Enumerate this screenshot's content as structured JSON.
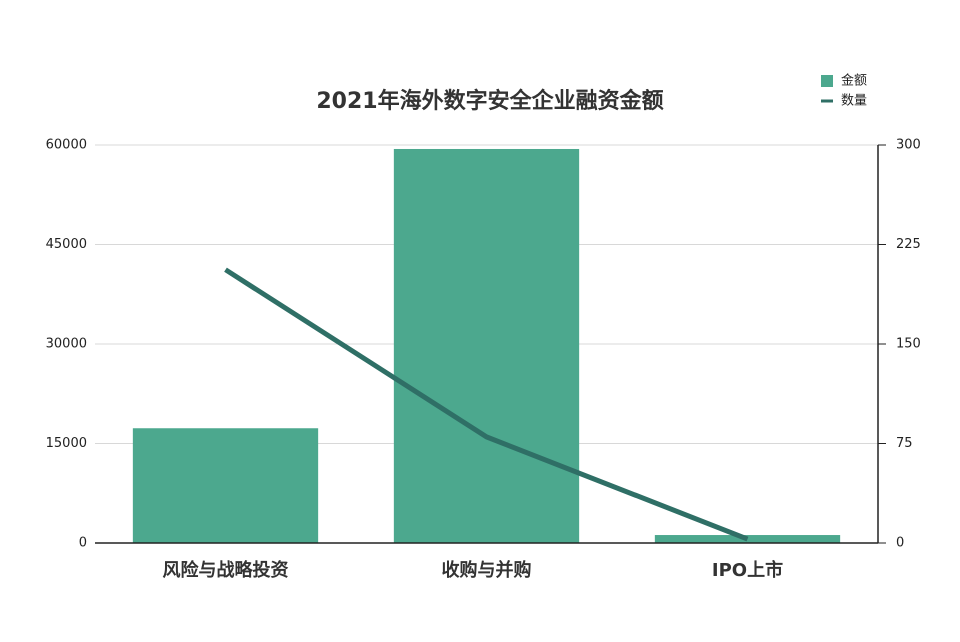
{
  "chart_data": {
    "type": "bar-line",
    "title": "2021年海外数字安全企业融资金额",
    "categories": [
      "风险与战略投资",
      "收购与并购",
      "IPO上市"
    ],
    "series": [
      {
        "name": "金额",
        "type": "bar",
        "color": "#4ca88e",
        "values": [
          17300,
          59400,
          1200
        ]
      },
      {
        "name": "数量",
        "type": "line",
        "axis": "y2",
        "color": "#2f6f66",
        "values": [
          206,
          80,
          3
        ]
      }
    ],
    "ylim": [
      0,
      60000
    ],
    "yticks": [
      0,
      15000,
      30000,
      45000,
      60000
    ],
    "y2lim": [
      0,
      300
    ],
    "y2ticks": [
      0,
      75,
      150,
      225,
      300
    ],
    "grid": true,
    "legend": "top-right"
  }
}
